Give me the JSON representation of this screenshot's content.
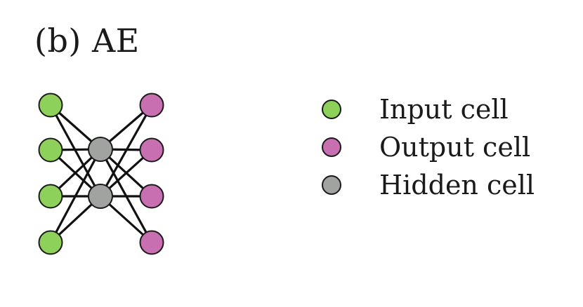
{
  "title": "(b) AE",
  "colors": {
    "input": "#8ed15a",
    "output": "#c76fb0",
    "hidden": "#a0a3a0",
    "edge": "#111111",
    "node_border": "#1a1a1a"
  },
  "network": {
    "input_count": 4,
    "hidden_count": 2,
    "output_count": 4
  },
  "legend": {
    "items": [
      {
        "label": "Input cell",
        "kind": "input"
      },
      {
        "label": "Output cell",
        "kind": "output"
      },
      {
        "label": "Hidden cell",
        "kind": "hidden"
      }
    ]
  }
}
